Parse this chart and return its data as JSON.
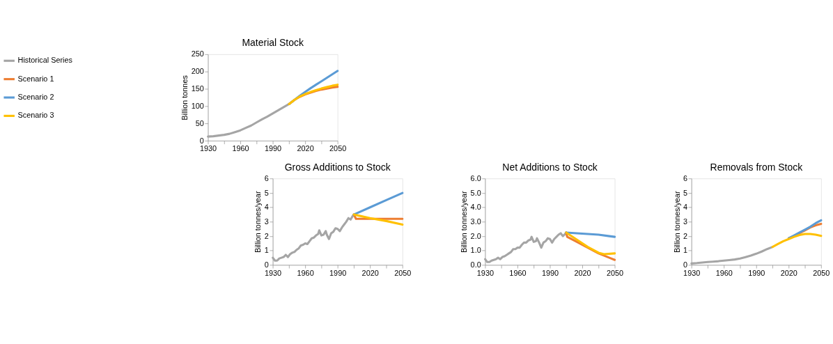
{
  "chart_data": [
    {
      "type": "line",
      "title": "Material Stock",
      "ylabel": "Billion tonnes",
      "xlim": [
        1930,
        2050
      ],
      "ylim": [
        0,
        250
      ],
      "yticks": [
        0,
        50,
        100,
        150,
        200,
        250
      ],
      "xticks": [
        1930,
        {
          "value": 1945,
          "label": null
        },
        1960,
        {
          "value": 1975,
          "label": null
        },
        1990,
        {
          "value": 2005,
          "label": null
        },
        2020,
        {
          "value": 2035,
          "label": null
        },
        2050
      ],
      "grid": false,
      "legend": "top left",
      "series": [
        {
          "name": "Historical Series",
          "color": "#a5a5a5",
          "x": [
            1930,
            1935,
            1940,
            1945,
            1950,
            1955,
            1960,
            1965,
            1970,
            1975,
            1980,
            1985,
            1990,
            1995,
            2000,
            2005
          ],
          "values": [
            12,
            13,
            15,
            17,
            20,
            25,
            30,
            37,
            44,
            53,
            62,
            70,
            79,
            88,
            97,
            106
          ]
        },
        {
          "name": "Scenario 1",
          "color": "#ed7d31",
          "x": [
            2005,
            2010,
            2015,
            2020,
            2025,
            2030,
            2035,
            2040,
            2045,
            2050
          ],
          "values": [
            106,
            118,
            127,
            134,
            139,
            144,
            148,
            151,
            154,
            156
          ]
        },
        {
          "name": "Scenario 2",
          "color": "#5b9bd5",
          "x": [
            2005,
            2010,
            2015,
            2020,
            2025,
            2030,
            2035,
            2040,
            2045,
            2050
          ],
          "values": [
            106,
            118,
            130,
            141,
            152,
            162,
            172,
            182,
            192,
            202
          ]
        },
        {
          "name": "Scenario 3",
          "color": "#ffc000",
          "x": [
            2005,
            2010,
            2015,
            2020,
            2025,
            2030,
            2035,
            2040,
            2045,
            2050
          ],
          "values": [
            106,
            118,
            128,
            135,
            141,
            146,
            151,
            155,
            159,
            162
          ]
        }
      ]
    },
    {
      "type": "line",
      "title": "Gross Additions to Stock",
      "ylabel": "Billion tonnes/year",
      "xlim": [
        1930,
        2050
      ],
      "ylim": [
        0,
        6
      ],
      "yticks": [
        0,
        1,
        2,
        3,
        4,
        5,
        6
      ],
      "xticks": [
        1930,
        {
          "value": 1945,
          "label": null
        },
        1960,
        {
          "value": 1975,
          "label": null
        },
        1990,
        {
          "value": 2005,
          "label": null
        },
        2020,
        {
          "value": 2035,
          "label": null
        },
        2050
      ],
      "grid": false,
      "series": [
        {
          "name": "Historical Series",
          "color": "#a5a5a5",
          "x": [
            1930,
            1932,
            1934,
            1936,
            1938,
            1940,
            1942,
            1944,
            1946,
            1948,
            1950,
            1952,
            1954,
            1956,
            1958,
            1960,
            1962,
            1964,
            1966,
            1968,
            1970,
            1972,
            1973,
            1975,
            1977,
            1979,
            1980,
            1982,
            1984,
            1986,
            1988,
            1990,
            1992,
            1994,
            1996,
            1998,
            2000,
            2002,
            2004,
            2005
          ],
          "values": [
            0.5,
            0.3,
            0.3,
            0.45,
            0.5,
            0.55,
            0.7,
            0.55,
            0.75,
            0.85,
            0.9,
            1.05,
            1.15,
            1.35,
            1.4,
            1.5,
            1.45,
            1.65,
            1.85,
            1.9,
            2.05,
            2.15,
            2.4,
            2.05,
            2.1,
            2.35,
            2.1,
            1.8,
            2.2,
            2.3,
            2.55,
            2.5,
            2.35,
            2.6,
            2.8,
            3.0,
            3.25,
            3.15,
            3.4,
            3.5
          ]
        },
        {
          "name": "Scenario 1",
          "color": "#ed7d31",
          "x": [
            2005,
            2007,
            2020,
            2035,
            2050
          ],
          "values": [
            3.5,
            3.2,
            3.2,
            3.2,
            3.2
          ]
        },
        {
          "name": "Scenario 2",
          "color": "#5b9bd5",
          "x": [
            2005,
            2020,
            2035,
            2050
          ],
          "values": [
            3.5,
            4.0,
            4.5,
            5.0
          ]
        },
        {
          "name": "Scenario 3",
          "color": "#ffc000",
          "x": [
            2005,
            2020,
            2035,
            2050
          ],
          "values": [
            3.5,
            3.25,
            3.05,
            2.8
          ]
        }
      ]
    },
    {
      "type": "line",
      "title": "Net Additions to Stock",
      "ylabel": "Billion tonnes/year",
      "xlim": [
        1930,
        2050
      ],
      "ylim": [
        0,
        6
      ],
      "yticks": [
        {
          "value": 0,
          "label": "0.0"
        },
        {
          "value": 1,
          "label": "1.0"
        },
        {
          "value": 2,
          "label": "2.0"
        },
        {
          "value": 3,
          "label": "3.0"
        },
        {
          "value": 4,
          "label": "4.0"
        },
        {
          "value": 5,
          "label": "5.0"
        },
        {
          "value": 6,
          "label": "6.0"
        }
      ],
      "xticks": [
        1930,
        {
          "value": 1945,
          "label": null
        },
        1960,
        {
          "value": 1975,
          "label": null
        },
        1990,
        {
          "value": 2005,
          "label": null
        },
        2020,
        {
          "value": 2035,
          "label": null
        },
        2050
      ],
      "grid": false,
      "series": [
        {
          "name": "Historical Series",
          "color": "#a5a5a5",
          "x": [
            1930,
            1932,
            1934,
            1936,
            1938,
            1940,
            1942,
            1944,
            1946,
            1948,
            1950,
            1952,
            1954,
            1956,
            1958,
            1960,
            1962,
            1964,
            1966,
            1968,
            1970,
            1972,
            1973,
            1975,
            1977,
            1978,
            1980,
            1982,
            1984,
            1986,
            1988,
            1990,
            1992,
            1994,
            1996,
            1998,
            2000,
            2002,
            2004,
            2005
          ],
          "values": [
            0.4,
            0.2,
            0.2,
            0.3,
            0.35,
            0.4,
            0.5,
            0.4,
            0.55,
            0.6,
            0.7,
            0.8,
            0.9,
            1.1,
            1.1,
            1.2,
            1.2,
            1.4,
            1.55,
            1.55,
            1.7,
            1.75,
            1.95,
            1.6,
            1.65,
            1.85,
            1.55,
            1.2,
            1.55,
            1.65,
            1.85,
            1.8,
            1.55,
            1.8,
            1.95,
            2.1,
            2.2,
            2.0,
            2.15,
            2.25
          ]
        },
        {
          "name": "Scenario 1",
          "color": "#ed7d31",
          "x": [
            2005,
            2006,
            2015,
            2025,
            2035,
            2045,
            2050
          ],
          "values": [
            2.25,
            1.95,
            1.6,
            1.2,
            0.8,
            0.5,
            0.35
          ]
        },
        {
          "name": "Scenario 2",
          "color": "#5b9bd5",
          "x": [
            2005,
            2015,
            2025,
            2035,
            2045,
            2050
          ],
          "values": [
            2.25,
            2.2,
            2.15,
            2.1,
            2.0,
            1.95
          ]
        },
        {
          "name": "Scenario 3",
          "color": "#ffc000",
          "x": [
            2005,
            2015,
            2025,
            2035,
            2040,
            2050
          ],
          "values": [
            2.25,
            1.75,
            1.25,
            0.85,
            0.75,
            0.8
          ]
        }
      ]
    },
    {
      "type": "line",
      "title": "Removals from Stock",
      "ylabel": "Billion tonnes/year",
      "xlim": [
        1930,
        2050
      ],
      "ylim": [
        0,
        6
      ],
      "yticks": [
        0,
        1,
        2,
        3,
        4,
        5,
        6
      ],
      "xticks": [
        1930,
        {
          "value": 1945,
          "label": null
        },
        1960,
        {
          "value": 1975,
          "label": null
        },
        1990,
        {
          "value": 2005,
          "label": null
        },
        2020,
        {
          "value": 2035,
          "label": null
        },
        2050
      ],
      "grid": false,
      "series": [
        {
          "name": "Historical Series",
          "color": "#a5a5a5",
          "x": [
            1930,
            1935,
            1940,
            1945,
            1950,
            1955,
            1960,
            1965,
            1970,
            1975,
            1980,
            1985,
            1990,
            1995,
            2000,
            2005
          ],
          "values": [
            0.1,
            0.13,
            0.17,
            0.2,
            0.23,
            0.26,
            0.3,
            0.34,
            0.38,
            0.45,
            0.54,
            0.65,
            0.78,
            0.93,
            1.1,
            1.25
          ]
        },
        {
          "name": "Scenario 1",
          "color": "#ed7d31",
          "x": [
            2020,
            2025,
            2030,
            2035,
            2040,
            2045,
            2050
          ],
          "values": [
            1.85,
            2.0,
            2.2,
            2.4,
            2.6,
            2.75,
            2.85
          ]
        },
        {
          "name": "Scenario 2",
          "color": "#5b9bd5",
          "x": [
            2020,
            2025,
            2030,
            2035,
            2040,
            2045,
            2050
          ],
          "values": [
            1.85,
            2.05,
            2.25,
            2.45,
            2.65,
            2.9,
            3.1
          ]
        },
        {
          "name": "Scenario 3",
          "color": "#ffc000",
          "x": [
            2005,
            2010,
            2015,
            2020,
            2025,
            2030,
            2035,
            2040,
            2045,
            2050
          ],
          "values": [
            1.25,
            1.45,
            1.65,
            1.8,
            1.95,
            2.08,
            2.15,
            2.15,
            2.1,
            2.02
          ]
        }
      ]
    }
  ]
}
